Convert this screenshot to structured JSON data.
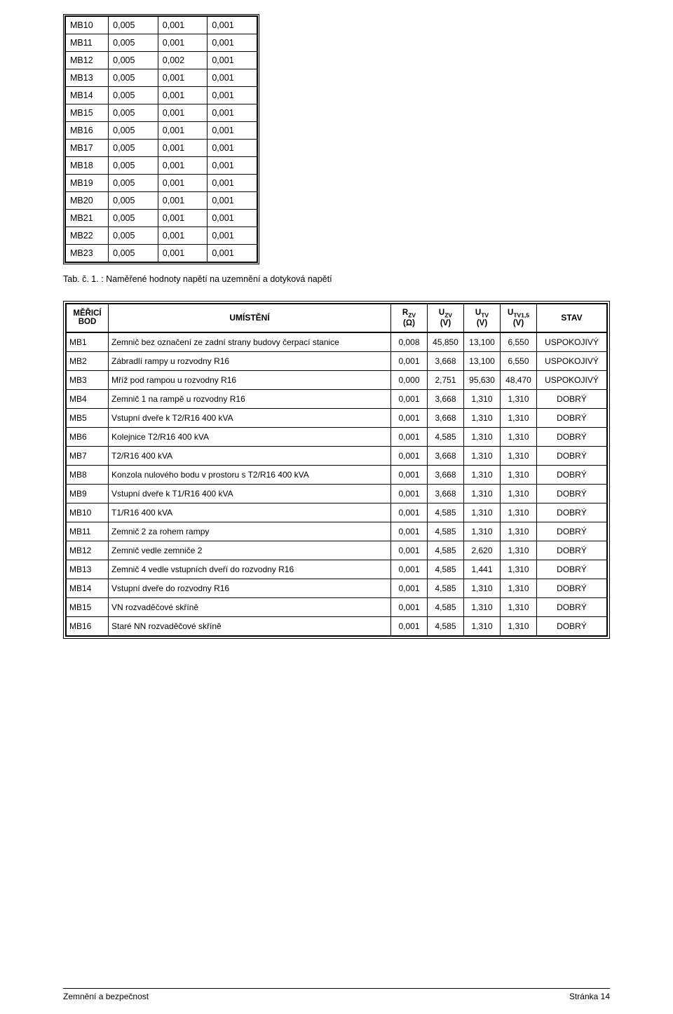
{
  "table1": {
    "rows": [
      [
        "MB10",
        "0,005",
        "0,001",
        "0,001"
      ],
      [
        "MB11",
        "0,005",
        "0,001",
        "0,001"
      ],
      [
        "MB12",
        "0,005",
        "0,002",
        "0,001"
      ],
      [
        "MB13",
        "0,005",
        "0,001",
        "0,001"
      ],
      [
        "MB14",
        "0,005",
        "0,001",
        "0,001"
      ],
      [
        "MB15",
        "0,005",
        "0,001",
        "0,001"
      ],
      [
        "MB16",
        "0,005",
        "0,001",
        "0,001"
      ],
      [
        "MB17",
        "0,005",
        "0,001",
        "0,001"
      ],
      [
        "MB18",
        "0,005",
        "0,001",
        "0,001"
      ],
      [
        "MB19",
        "0,005",
        "0,001",
        "0,001"
      ],
      [
        "MB20",
        "0,005",
        "0,001",
        "0,001"
      ],
      [
        "MB21",
        "0,005",
        "0,001",
        "0,001"
      ],
      [
        "MB22",
        "0,005",
        "0,001",
        "0,001"
      ],
      [
        "MB23",
        "0,005",
        "0,001",
        "0,001"
      ]
    ]
  },
  "caption": "Tab. č. 1. : Naměřené hodnoty napětí na uzemnění a dotyková napětí",
  "table2": {
    "headers": {
      "bod_l1": "MĚŘICÍ",
      "bod_l2": "BOD",
      "umisteni": "UMÍSTĚNÍ",
      "r_top": "R",
      "r_sub": "ZV",
      "r_unit": "(Ω)",
      "uzv_top": "U",
      "uzv_sub": "ZV",
      "uzv_unit": "(V)",
      "utv_top": "U",
      "utv_sub": "TV",
      "utv_unit": "(V)",
      "utv15_top": "U",
      "utv15_sub": "TV1,5",
      "utv15_unit": "(V)",
      "stav": "STAV"
    },
    "rows": [
      {
        "bod": "MB1",
        "um": "Zemnič bez označení ze zadní strany budovy čerpací stanice",
        "r": "0,008",
        "uzv": "45,850",
        "utv": "13,100",
        "utv15": "6,550",
        "stav": "USPOKOJIVÝ"
      },
      {
        "bod": "MB2",
        "um": "Zábradlí rampy u rozvodny R16",
        "r": "0,001",
        "uzv": "3,668",
        "utv": "13,100",
        "utv15": "6,550",
        "stav": "USPOKOJIVÝ"
      },
      {
        "bod": "MB3",
        "um": "Mříž pod rampou u rozvodny R16",
        "r": "0,000",
        "uzv": "2,751",
        "utv": "95,630",
        "utv15": "48,470",
        "stav": "USPOKOJIVÝ"
      },
      {
        "bod": "MB4",
        "um": "Zemnič 1 na rampě u rozvodny R16",
        "r": "0,001",
        "uzv": "3,668",
        "utv": "1,310",
        "utv15": "1,310",
        "stav": "DOBRÝ"
      },
      {
        "bod": "MB5",
        "um": "Vstupní dveře k T2/R16 400 kVA",
        "r": "0,001",
        "uzv": "3,668",
        "utv": "1,310",
        "utv15": "1,310",
        "stav": "DOBRÝ"
      },
      {
        "bod": "MB6",
        "um": "Kolejnice T2/R16 400 kVA",
        "r": "0,001",
        "uzv": "4,585",
        "utv": "1,310",
        "utv15": "1,310",
        "stav": "DOBRÝ"
      },
      {
        "bod": "MB7",
        "um": "T2/R16 400 kVA",
        "r": "0,001",
        "uzv": "3,668",
        "utv": "1,310",
        "utv15": "1,310",
        "stav": "DOBRÝ"
      },
      {
        "bod": "MB8",
        "um": "Konzola nulového bodu v prostoru s T2/R16 400 kVA",
        "r": "0,001",
        "uzv": "3,668",
        "utv": "1,310",
        "utv15": "1,310",
        "stav": "DOBRÝ"
      },
      {
        "bod": "MB9",
        "um": "Vstupní dveře k T1/R16 400 kVA",
        "r": "0,001",
        "uzv": "3,668",
        "utv": "1,310",
        "utv15": "1,310",
        "stav": "DOBRÝ"
      },
      {
        "bod": "MB10",
        "um": "T1/R16 400 kVA",
        "r": "0,001",
        "uzv": "4,585",
        "utv": "1,310",
        "utv15": "1,310",
        "stav": "DOBRÝ"
      },
      {
        "bod": "MB11",
        "um": "Zemnič 2 za rohem rampy",
        "r": "0,001",
        "uzv": "4,585",
        "utv": "1,310",
        "utv15": "1,310",
        "stav": "DOBRÝ"
      },
      {
        "bod": "MB12",
        "um": "Zemnič vedle zemniče 2",
        "r": "0,001",
        "uzv": "4,585",
        "utv": "2,620",
        "utv15": "1,310",
        "stav": "DOBRÝ"
      },
      {
        "bod": "MB13",
        "um": "Zemnič 4 vedle vstupních dveří do rozvodny R16",
        "r": "0,001",
        "uzv": "4,585",
        "utv": "1,441",
        "utv15": "1,310",
        "stav": "DOBRÝ"
      },
      {
        "bod": "MB14",
        "um": "Vstupní dveře do rozvodny R16",
        "r": "0,001",
        "uzv": "4,585",
        "utv": "1,310",
        "utv15": "1,310",
        "stav": "DOBRÝ"
      },
      {
        "bod": "MB15",
        "um": "VN rozvaděčové skříně",
        "r": "0,001",
        "uzv": "4,585",
        "utv": "1,310",
        "utv15": "1,310",
        "stav": "DOBRÝ"
      },
      {
        "bod": "MB16",
        "um": "Staré NN rozvaděčové skříně",
        "r": "0,001",
        "uzv": "4,585",
        "utv": "1,310",
        "utv15": "1,310",
        "stav": "DOBRÝ"
      }
    ]
  },
  "footer": {
    "left": "Zemnění a bezpečnost",
    "right": "Stránka 14"
  }
}
